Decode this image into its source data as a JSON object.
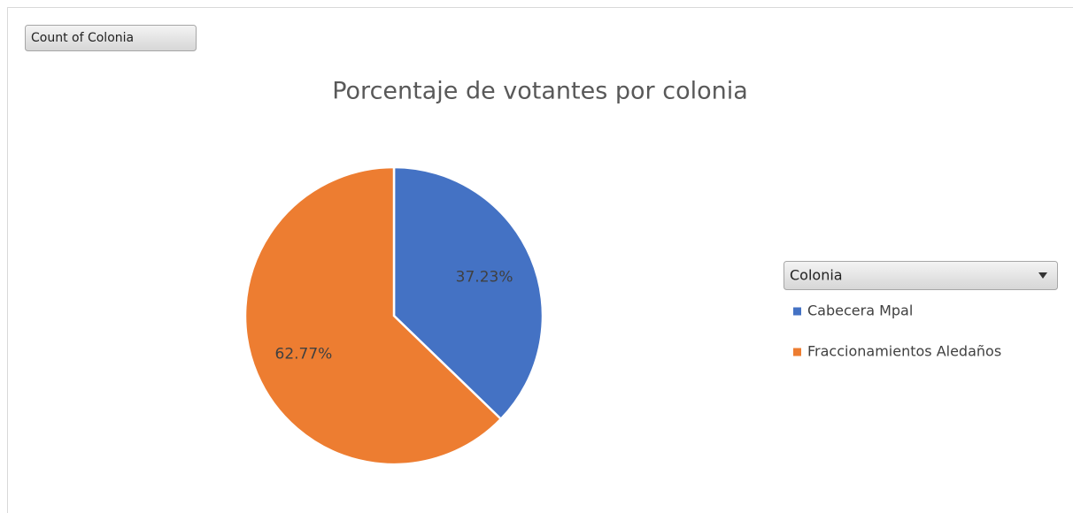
{
  "chart_data": {
    "type": "pie",
    "title": "Porcentaje de votantes por colonia",
    "field_button": "Count of Colonia",
    "legend_title": "Colonia",
    "categories": [
      "Cabecera Mpal",
      "Fraccionamientos Aledaños"
    ],
    "values": [
      37.23,
      62.77
    ],
    "value_labels": [
      "37.23%",
      "62.77%"
    ],
    "colors": [
      "#4472c4",
      "#ed7d31"
    ],
    "legend": "right"
  }
}
